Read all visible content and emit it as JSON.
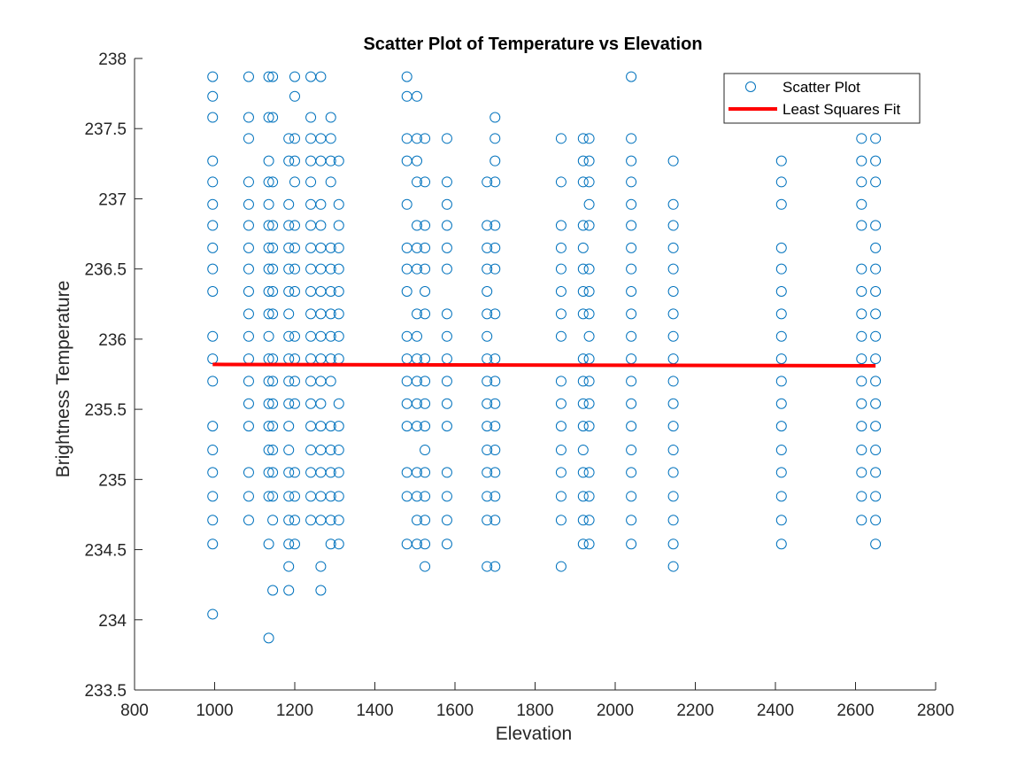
{
  "chart_data": {
    "type": "scatter",
    "title": "Scatter Plot of Temperature vs Elevation",
    "xlabel": "Elevation",
    "ylabel": "Brightness Temperature",
    "xlim": [
      800,
      2800
    ],
    "ylim": [
      233.5,
      238
    ],
    "xticks": [
      800,
      1000,
      1200,
      1400,
      1600,
      1800,
      2000,
      2200,
      2400,
      2600,
      2800
    ],
    "yticks": [
      233.5,
      234,
      234.5,
      235,
      235.5,
      236,
      236.5,
      237,
      237.5,
      238
    ],
    "grid": false,
    "legend_position": "top-right",
    "marker_color": "#0072BD",
    "fit_color": "#FF0000",
    "series": [
      {
        "name": "Scatter Plot",
        "kind": "markers",
        "groups": [
          {
            "x": 995,
            "y": [
              237.87,
              237.73,
              237.58,
              237.27,
              237.12,
              236.96,
              236.81,
              236.65,
              236.5,
              236.34,
              236.02,
              235.86,
              235.7,
              235.38,
              235.21,
              235.05,
              234.88,
              234.71,
              234.54,
              234.04
            ]
          },
          {
            "x": 1085,
            "y": [
              237.87,
              237.58,
              237.43,
              237.12,
              236.96,
              236.81,
              236.65,
              236.5,
              236.34,
              236.18,
              236.02,
              235.86,
              235.7,
              235.54,
              235.38,
              235.05,
              234.88,
              234.71
            ]
          },
          {
            "x": 1135,
            "y": [
              237.87,
              237.58,
              237.27,
              237.12,
              236.96,
              236.81,
              236.65,
              236.5,
              236.34,
              236.18,
              236.02,
              235.86,
              235.7,
              235.54,
              235.38,
              235.21,
              235.05,
              234.88,
              234.54,
              233.87
            ]
          },
          {
            "x": 1145,
            "y": [
              237.87,
              237.58,
              237.12,
              236.81,
              236.65,
              236.5,
              236.34,
              236.18,
              235.86,
              235.7,
              235.54,
              235.38,
              235.21,
              235.05,
              234.88,
              234.71,
              234.21
            ]
          },
          {
            "x": 1185,
            "y": [
              237.43,
              237.27,
              236.96,
              236.81,
              236.65,
              236.5,
              236.34,
              236.18,
              236.02,
              235.86,
              235.7,
              235.54,
              235.38,
              235.21,
              235.05,
              234.88,
              234.71,
              234.54,
              234.38,
              234.21
            ]
          },
          {
            "x": 1200,
            "y": [
              237.87,
              237.73,
              237.43,
              237.27,
              237.12,
              236.81,
              236.65,
              236.5,
              236.34,
              236.02,
              235.86,
              235.7,
              235.54,
              235.05,
              234.88,
              234.71,
              234.54
            ]
          },
          {
            "x": 1240,
            "y": [
              237.87,
              237.58,
              237.43,
              237.27,
              237.12,
              236.96,
              236.81,
              236.65,
              236.5,
              236.34,
              236.18,
              236.02,
              235.86,
              235.7,
              235.54,
              235.38,
              235.21,
              235.05,
              234.88,
              234.71
            ]
          },
          {
            "x": 1265,
            "y": [
              237.87,
              237.43,
              237.27,
              236.96,
              236.81,
              236.65,
              236.5,
              236.34,
              236.18,
              236.02,
              235.86,
              235.7,
              235.54,
              235.38,
              235.21,
              235.05,
              234.88,
              234.71,
              234.38,
              234.21
            ]
          },
          {
            "x": 1290,
            "y": [
              237.58,
              237.43,
              237.27,
              237.12,
              236.65,
              236.5,
              236.34,
              236.18,
              236.02,
              235.86,
              235.7,
              235.38,
              235.21,
              235.05,
              234.88,
              234.71,
              234.54
            ]
          },
          {
            "x": 1310,
            "y": [
              237.27,
              236.96,
              236.81,
              236.65,
              236.5,
              236.34,
              236.18,
              236.02,
              235.86,
              235.54,
              235.38,
              235.21,
              235.05,
              234.88,
              234.71,
              234.54
            ]
          },
          {
            "x": 1480,
            "y": [
              237.87,
              237.73,
              237.43,
              237.27,
              236.96,
              236.65,
              236.5,
              236.34,
              236.02,
              235.86,
              235.7,
              235.54,
              235.38,
              235.05,
              234.88,
              234.54
            ]
          },
          {
            "x": 1505,
            "y": [
              237.73,
              237.43,
              237.27,
              237.12,
              236.81,
              236.65,
              236.5,
              236.18,
              236.02,
              235.86,
              235.7,
              235.54,
              235.38,
              235.05,
              234.88,
              234.71,
              234.54
            ]
          },
          {
            "x": 1525,
            "y": [
              237.43,
              237.12,
              236.81,
              236.65,
              236.5,
              236.34,
              236.18,
              235.86,
              235.7,
              235.54,
              235.38,
              235.21,
              235.05,
              234.88,
              234.71,
              234.54,
              234.38
            ]
          },
          {
            "x": 1580,
            "y": [
              237.43,
              237.12,
              236.96,
              236.81,
              236.65,
              236.5,
              236.18,
              236.02,
              235.86,
              235.7,
              235.54,
              235.38,
              235.05,
              234.88,
              234.71,
              234.54
            ]
          },
          {
            "x": 1680,
            "y": [
              237.12,
              236.81,
              236.65,
              236.5,
              236.34,
              236.18,
              236.02,
              235.86,
              235.7,
              235.54,
              235.38,
              235.21,
              235.05,
              234.88,
              234.71,
              234.38
            ]
          },
          {
            "x": 1700,
            "y": [
              237.58,
              237.43,
              237.27,
              237.12,
              236.81,
              236.65,
              236.5,
              236.18,
              235.86,
              235.7,
              235.54,
              235.38,
              235.21,
              235.05,
              234.88,
              234.71,
              234.38
            ]
          },
          {
            "x": 1865,
            "y": [
              237.43,
              237.12,
              236.81,
              236.65,
              236.5,
              236.34,
              236.18,
              236.02,
              235.7,
              235.54,
              235.38,
              235.21,
              235.05,
              234.88,
              234.71,
              234.38
            ]
          },
          {
            "x": 1920,
            "y": [
              237.43,
              237.27,
              237.12,
              236.81,
              236.65,
              236.5,
              236.34,
              236.18,
              235.86,
              235.7,
              235.54,
              235.38,
              235.21,
              235.05,
              234.88,
              234.71,
              234.54
            ]
          },
          {
            "x": 1935,
            "y": [
              237.43,
              237.27,
              237.12,
              236.96,
              236.81,
              236.5,
              236.34,
              236.18,
              236.02,
              235.86,
              235.7,
              235.54,
              235.38,
              235.05,
              234.88,
              234.71,
              234.54
            ]
          },
          {
            "x": 2040,
            "y": [
              237.87,
              237.43,
              237.27,
              237.12,
              236.96,
              236.81,
              236.65,
              236.5,
              236.34,
              236.18,
              236.02,
              235.86,
              235.7,
              235.54,
              235.38,
              235.21,
              235.05,
              234.88,
              234.71,
              234.54
            ]
          },
          {
            "x": 2145,
            "y": [
              237.27,
              236.96,
              236.81,
              236.65,
              236.5,
              236.34,
              236.18,
              236.02,
              235.86,
              235.7,
              235.54,
              235.38,
              235.21,
              235.05,
              234.88,
              234.71,
              234.54,
              234.38
            ]
          },
          {
            "x": 2415,
            "y": [
              237.58,
              237.27,
              237.12,
              236.96,
              236.65,
              236.5,
              236.34,
              236.18,
              236.02,
              235.86,
              235.7,
              235.54,
              235.38,
              235.21,
              235.05,
              234.88,
              234.71,
              234.54
            ]
          },
          {
            "x": 2615,
            "y": [
              237.43,
              237.27,
              237.12,
              236.96,
              236.81,
              236.5,
              236.34,
              236.18,
              236.02,
              235.86,
              235.7,
              235.54,
              235.38,
              235.21,
              235.05,
              234.88,
              234.71
            ]
          },
          {
            "x": 2650,
            "y": [
              237.43,
              237.27,
              237.12,
              236.81,
              236.65,
              236.5,
              236.34,
              236.18,
              236.02,
              235.86,
              235.7,
              235.54,
              235.38,
              235.21,
              235.05,
              234.88,
              234.71,
              234.54
            ]
          }
        ]
      },
      {
        "name": "Least Squares Fit",
        "kind": "line",
        "x": [
          995,
          2650
        ],
        "y": [
          235.82,
          235.81
        ]
      }
    ]
  }
}
